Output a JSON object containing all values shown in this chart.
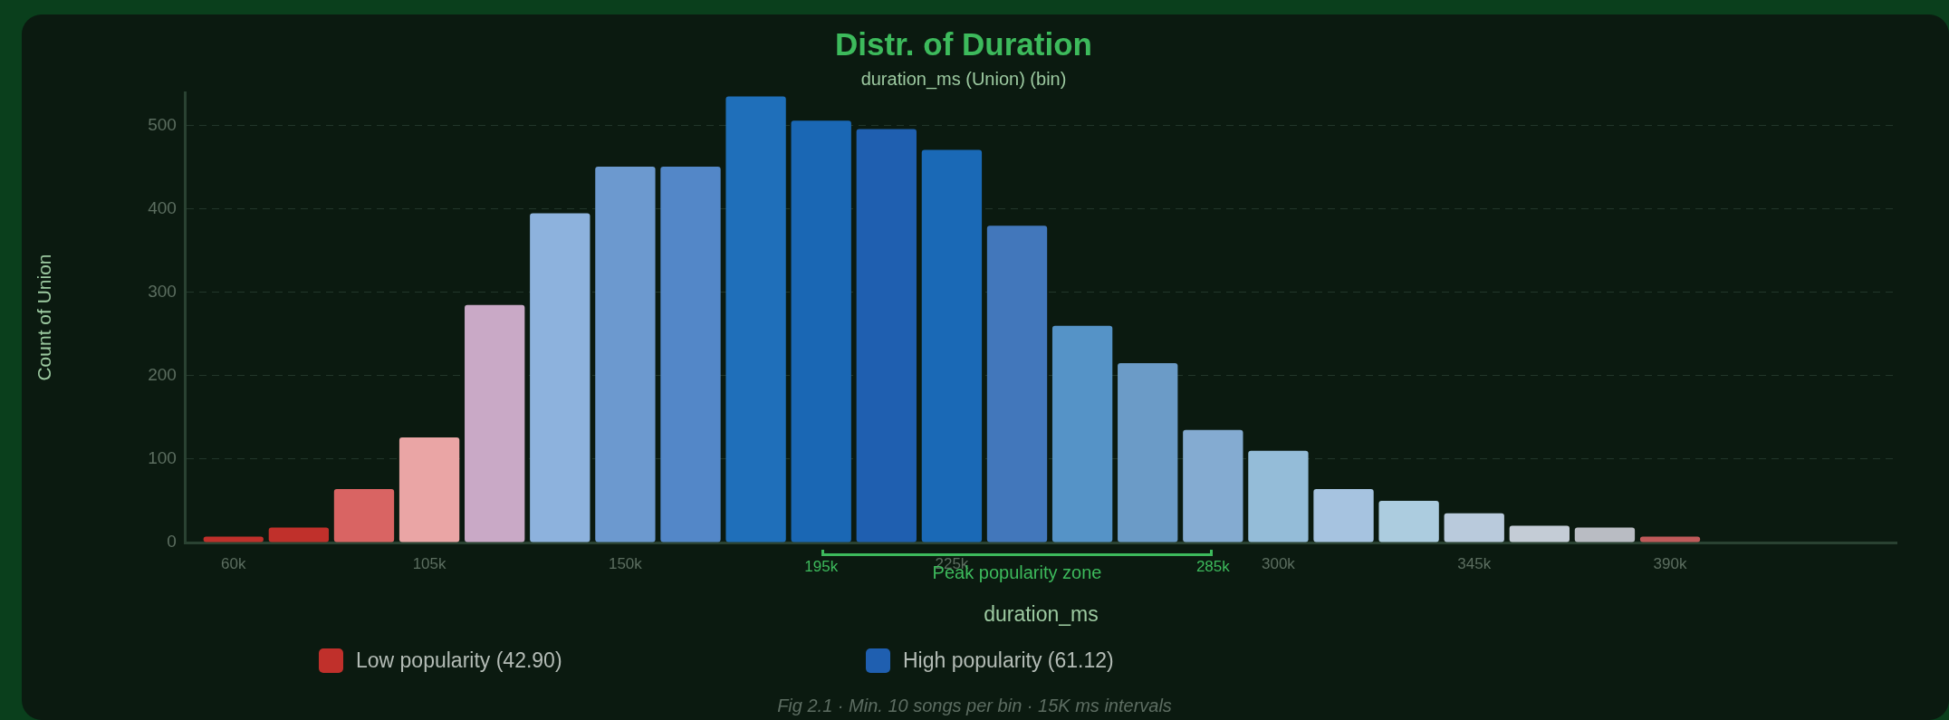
{
  "chart_data": {
    "type": "histogram",
    "title": "Distr. of Duration",
    "subtitle": "duration_ms (Union) (bin)",
    "xlabel": "duration_ms",
    "ylabel": "Count of Union",
    "bins": [
      52500,
      67500,
      82500,
      97500,
      112500,
      127500,
      142500,
      157500,
      172500,
      187500,
      202500,
      217500,
      232500,
      247500,
      262500,
      277500,
      292500,
      307500,
      322500,
      337500,
      352500,
      367500,
      382500,
      397500
    ],
    "values": [
      7,
      18,
      64,
      126,
      285,
      395,
      451,
      451,
      535,
      506,
      496,
      471,
      380,
      260,
      215,
      135,
      110,
      64,
      50,
      35,
      20,
      18,
      7
    ],
    "colors": [
      "#c0302b",
      "#c0302b",
      "#d96463",
      "#eaa5a5",
      "#c9a9c6",
      "#8db2dd",
      "#6c99cf",
      "#5387c8",
      "#1f6fba",
      "#1a67b4",
      "#1f5fb0",
      "#1a69b6",
      "#4277bb",
      "#5593c7",
      "#6b9bc7",
      "#84abd1",
      "#94bcd8",
      "#a6c3e0",
      "#acccdf",
      "#b9cadc",
      "#c4ccd6",
      "#b9bcc3",
      "#c05a5a"
    ],
    "xlim": [
      49000,
      442000
    ],
    "xticks": [
      {
        "value": 60000,
        "label": "60k"
      },
      {
        "value": 105000,
        "label": "105k"
      },
      {
        "value": 150000,
        "label": "150k"
      },
      {
        "value": 225000,
        "label": "225k"
      },
      {
        "value": 300000,
        "label": "300k"
      },
      {
        "value": 345000,
        "label": "345k"
      },
      {
        "value": 390000,
        "label": "390k"
      }
    ],
    "ylim": [
      0,
      540
    ],
    "yticks": [
      0,
      100,
      200,
      300,
      400,
      500
    ],
    "grid": "y",
    "annotations": [
      {
        "text": "195k",
        "x": 195000,
        "y": 0
      },
      {
        "text": "285k",
        "x": 285000,
        "y": 0
      },
      {
        "text": "Peak popularity zone",
        "x": 240000,
        "y": 0
      },
      "Low popularity (42.90)",
      "High popularity (61.12)",
      "Fig 2.1 · Min. 10 songs per bin · 15K ms intervals"
    ]
  }
}
